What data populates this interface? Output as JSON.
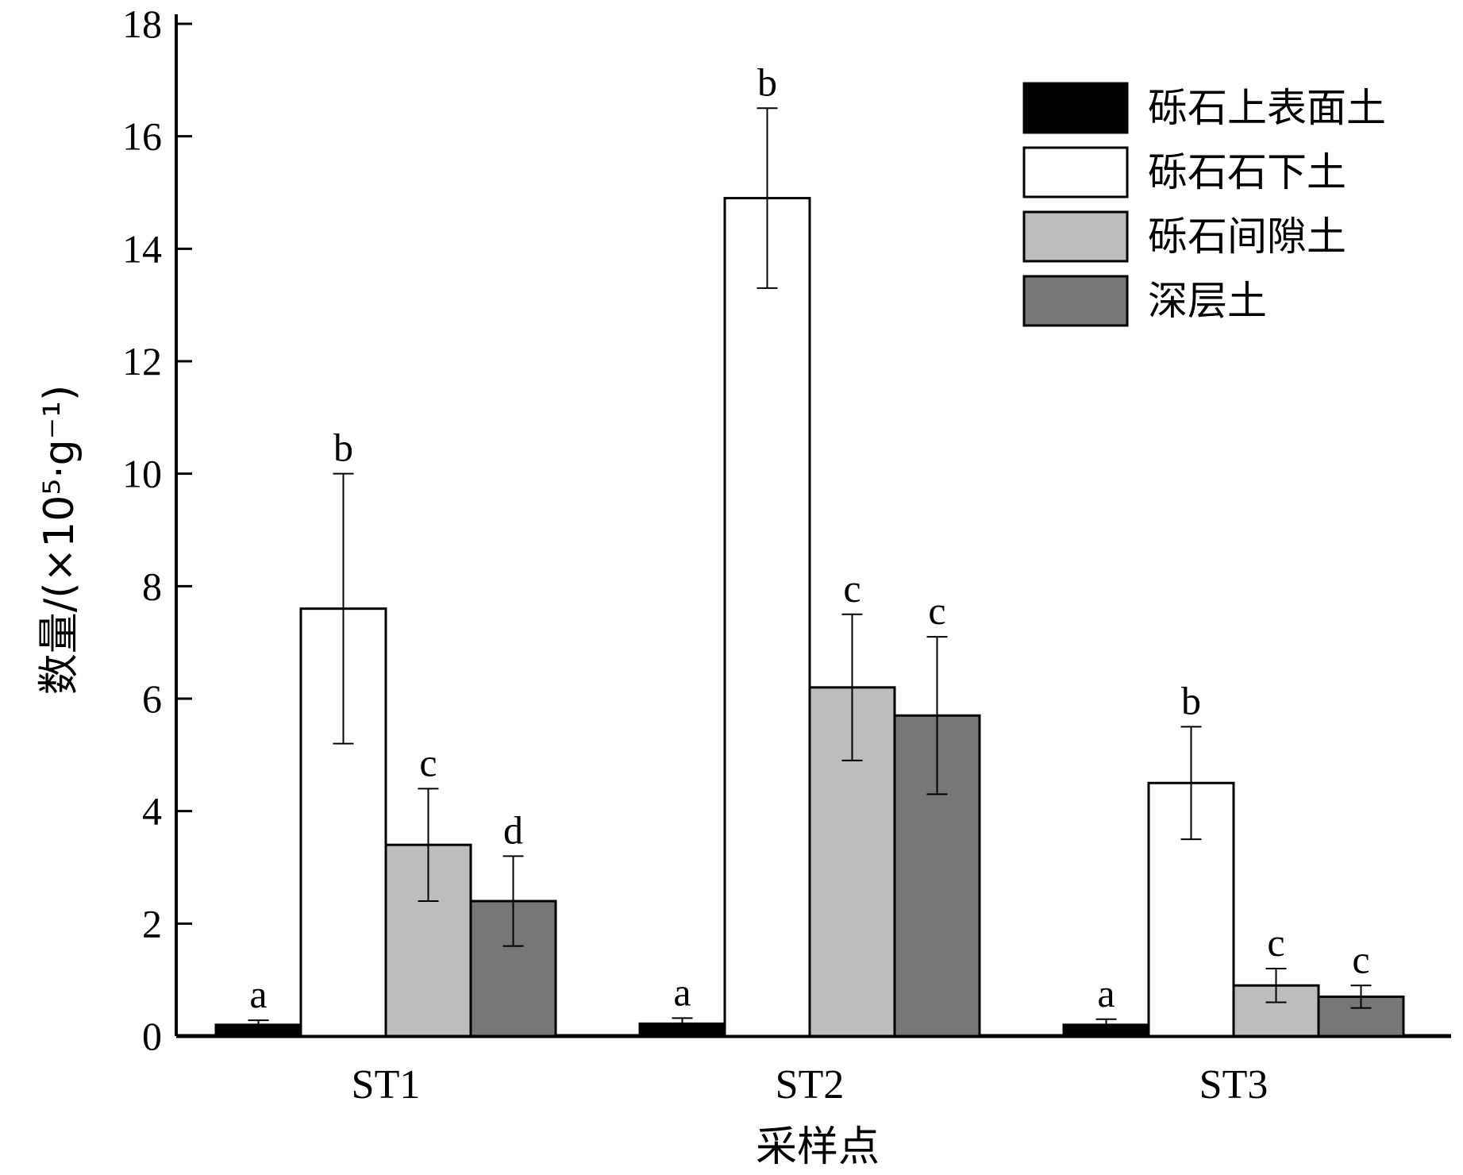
{
  "chart_data": {
    "type": "bar",
    "xlabel": "采样点",
    "ylabel": "数量/(×10⁵·g⁻¹)",
    "ylim": [
      0,
      18
    ],
    "yticks": [
      0,
      2,
      4,
      6,
      8,
      10,
      12,
      14,
      16,
      18
    ],
    "categories": [
      "ST1",
      "ST2",
      "ST3"
    ],
    "grid": false,
    "legend_position": "top-right",
    "series": [
      {
        "name": "砾石上表面土",
        "color": "#000000",
        "values": [
          0.2,
          0.22,
          0.2
        ],
        "errors": [
          0.08,
          0.1,
          0.1
        ],
        "labels": [
          "a",
          "a",
          "a"
        ]
      },
      {
        "name": "砾石石下土",
        "color": "#ffffff",
        "values": [
          7.6,
          14.9,
          4.5
        ],
        "errors": [
          2.4,
          1.6,
          1.0
        ],
        "labels": [
          "b",
          "b",
          "b"
        ]
      },
      {
        "name": "砾石间隙土",
        "color": "#bdbdbd",
        "values": [
          3.4,
          6.2,
          0.9
        ],
        "errors": [
          1.0,
          1.3,
          0.3
        ],
        "labels": [
          "c",
          "c",
          "c"
        ]
      },
      {
        "name": "深层土",
        "color": "#777777",
        "values": [
          2.4,
          5.7,
          0.7
        ],
        "errors": [
          0.8,
          1.4,
          0.2
        ],
        "labels": [
          "d",
          "c",
          "c"
        ]
      }
    ]
  }
}
